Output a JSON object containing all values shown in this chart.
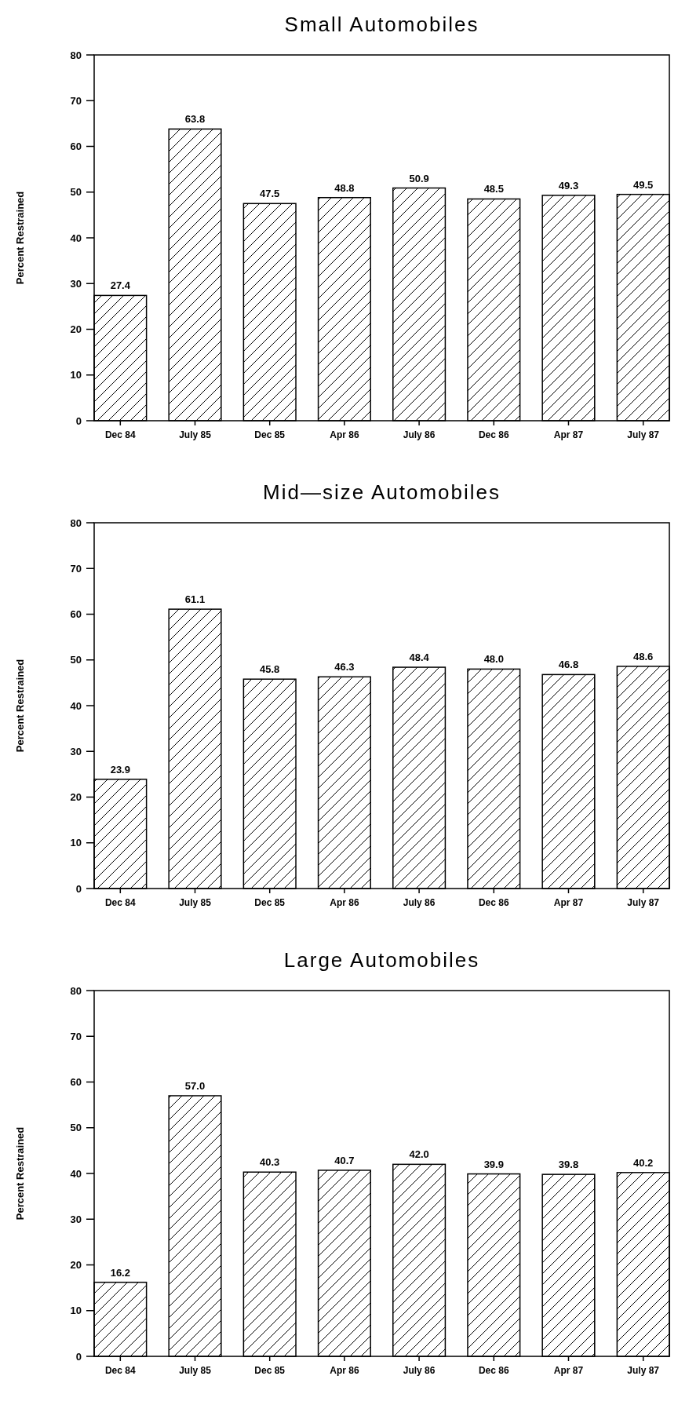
{
  "chart_data": [
    {
      "type": "bar",
      "title": "Small Automobiles",
      "ylabel": "Percent Restrained",
      "categories": [
        "Dec 84",
        "July 85",
        "Dec 85",
        "Apr 86",
        "July 86",
        "Dec 86",
        "Apr 87",
        "July 87"
      ],
      "values": [
        27.4,
        63.8,
        47.5,
        48.8,
        50.9,
        48.5,
        49.3,
        49.5
      ],
      "value_labels": [
        "27.4",
        "63.8",
        "47.5",
        "48.8",
        "50.9",
        "48.5",
        "49.3",
        "49.5"
      ],
      "color": "#000000",
      "ylim": [
        0,
        80
      ],
      "yticks": [
        0,
        10,
        20,
        30,
        40,
        50,
        60,
        70,
        80
      ],
      "grid": false
    },
    {
      "type": "bar",
      "title": "Mid—size Automobiles",
      "ylabel": "Percent Restrained",
      "categories": [
        "Dec 84",
        "July 85",
        "Dec 85",
        "Apr 86",
        "July 86",
        "Dec 86",
        "Apr 87",
        "July 87"
      ],
      "values": [
        23.9,
        61.1,
        45.8,
        46.3,
        48.4,
        48.0,
        46.8,
        48.6
      ],
      "value_labels": [
        "23.9",
        "61.1",
        "45.8",
        "46.3",
        "48.4",
        "48.0",
        "46.8",
        "48.6"
      ],
      "color": "#000000",
      "ylim": [
        0,
        80
      ],
      "yticks": [
        0,
        10,
        20,
        30,
        40,
        50,
        60,
        70,
        80
      ],
      "grid": false
    },
    {
      "type": "bar",
      "title": "Large Automobiles",
      "ylabel": "Percent Restrained",
      "categories": [
        "Dec 84",
        "July 85",
        "Dec 85",
        "Apr 86",
        "July 86",
        "Dec 86",
        "Apr 87",
        "July 87"
      ],
      "values": [
        16.2,
        57.0,
        40.3,
        40.7,
        42.0,
        39.9,
        39.8,
        40.2
      ],
      "value_labels": [
        "16.2",
        "57.0",
        "40.3",
        "40.7",
        "42.0",
        "39.9",
        "39.8",
        "40.2"
      ],
      "color": "#000000",
      "ylim": [
        0,
        80
      ],
      "yticks": [
        0,
        10,
        20,
        30,
        40,
        50,
        60,
        70,
        80
      ],
      "grid": false
    }
  ]
}
